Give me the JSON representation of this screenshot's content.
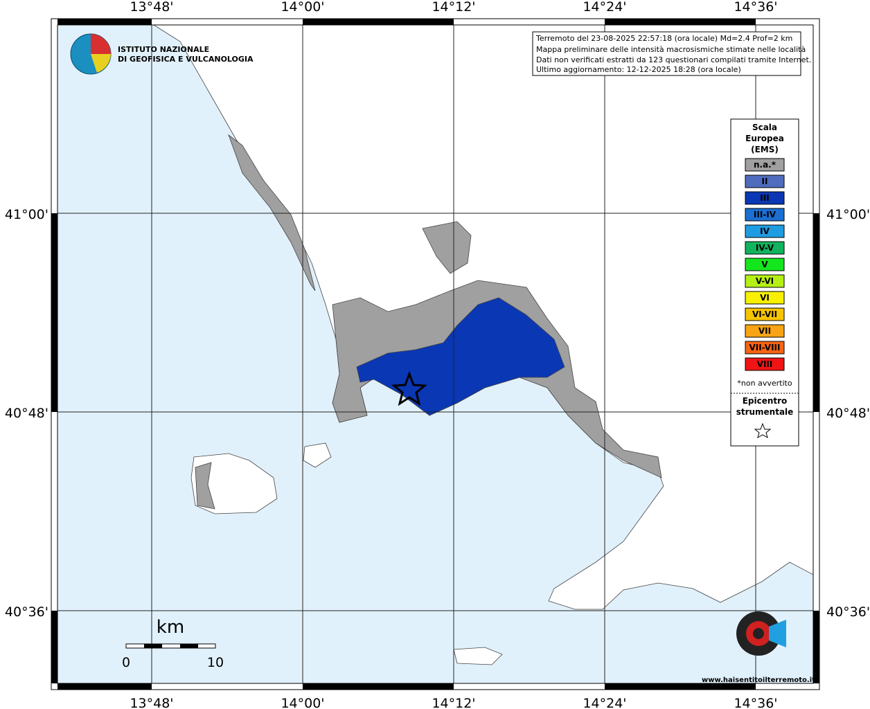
{
  "header": {
    "logo_lines": [
      "ISTITUTO NAZIONALE",
      "DI GEOFISICA E VULCANOLOGIA"
    ]
  },
  "info_box": {
    "lines": [
      "Terremoto del 23-08-2025 22:57:18 (ora locale) Md=2.4 Prof=2 km",
      "Mappa preliminare delle intensità macrosismiche stimate nelle località",
      "Dati non verificati estratti da 123 questionari compilati tramite Internet.",
      "Ultimo aggiornamento: 12-12-2025 18:28 (ora locale)"
    ]
  },
  "axes": {
    "longitude_labels": [
      "13°48'",
      "14°00'",
      "14°12'",
      "14°24'",
      "14°36'"
    ],
    "latitude_labels": [
      "41°00'",
      "40°48'",
      "40°36'"
    ]
  },
  "legend": {
    "title_lines": [
      "Scala",
      "Europea",
      "(EMS)"
    ],
    "classes": [
      {
        "label": "n.a.*",
        "color": "#a0a0a0"
      },
      {
        "label": "II",
        "color": "#4f6cbd"
      },
      {
        "label": "III",
        "color": "#0a37b4"
      },
      {
        "label": "III-IV",
        "color": "#1c6fd2"
      },
      {
        "label": "IV",
        "color": "#1e9ce2"
      },
      {
        "label": "IV-V",
        "color": "#12b35e"
      },
      {
        "label": "V",
        "color": "#14e61e"
      },
      {
        "label": "V-VI",
        "color": "#b4f014"
      },
      {
        "label": "VI",
        "color": "#f8f000"
      },
      {
        "label": "VI-VII",
        "color": "#f8c400"
      },
      {
        "label": "VII",
        "color": "#f8a414"
      },
      {
        "label": "VII-VIII",
        "color": "#f86414"
      },
      {
        "label": "VIII",
        "color": "#f01414"
      }
    ],
    "note": "*non avvertito",
    "epicenter_lines": [
      "Epicentro",
      "strumentale"
    ]
  },
  "scale_bar": {
    "unit": "km",
    "labels": [
      "0",
      "10"
    ]
  },
  "watermark": {
    "text": "www.haisentitoilterremoto.it"
  }
}
